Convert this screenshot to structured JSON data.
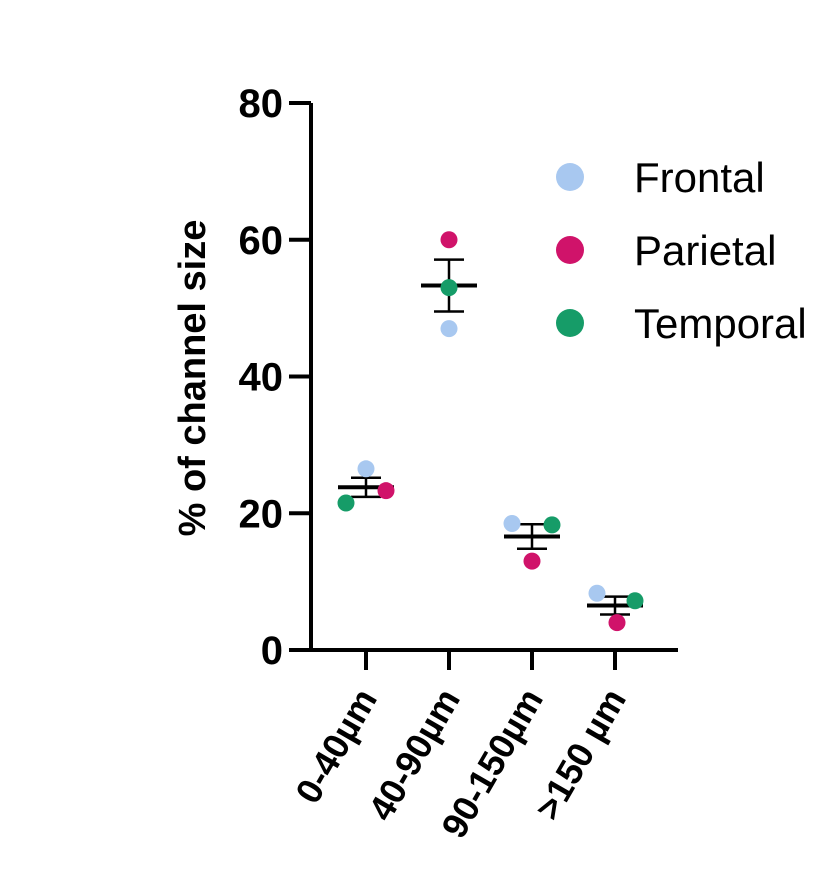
{
  "chart_data": {
    "type": "scatter",
    "title": "",
    "xlabel": "",
    "ylabel": "% of channel size",
    "ylim": [
      0,
      80
    ],
    "yticks": [
      "0",
      "20",
      "40",
      "60",
      "80"
    ],
    "yticks_values": [
      0,
      20,
      40,
      60,
      80
    ],
    "categories": [
      "0-40µm",
      "40-90µm",
      "90-150µm",
      ">150 µm"
    ],
    "legend_position": "top-right",
    "grid": false,
    "series": [
      {
        "name": "Frontal",
        "color": "#a8c8f0",
        "values": [
          26.5,
          47,
          18.5,
          8.3
        ]
      },
      {
        "name": "Parietal",
        "color": "#d0136a",
        "values": [
          23.3,
          60,
          13,
          4
        ]
      },
      {
        "name": "Temporal",
        "color": "#169c68",
        "values": [
          21.5,
          53,
          18.3,
          7.2
        ]
      }
    ],
    "summary": {
      "mean": [
        23.8,
        53.3,
        16.6,
        6.5
      ],
      "error": [
        1.4,
        3.8,
        1.8,
        1.3
      ]
    }
  }
}
